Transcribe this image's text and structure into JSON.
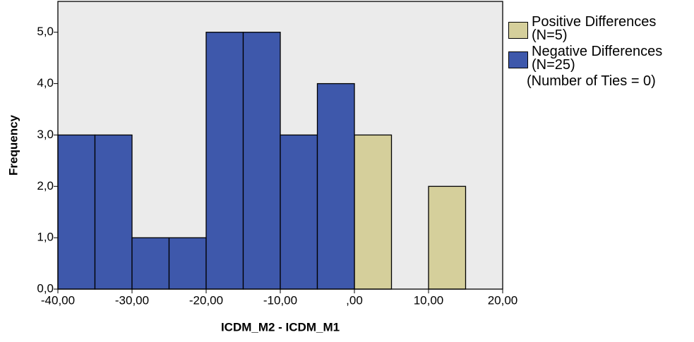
{
  "chart_data": {
    "type": "histogram",
    "x_label": "ICDM_M2 - ICDM_M1",
    "y_label": "Frequency",
    "bins": [
      -40,
      -35,
      -30,
      -25,
      -20,
      -15,
      -10,
      -5,
      0,
      5,
      10,
      15,
      20
    ],
    "series": [
      {
        "name": "Positive Differences (N=5)",
        "color": "#d5cf9b",
        "values": [
          0,
          0,
          0,
          0,
          0,
          0,
          0,
          0,
          3,
          0,
          2,
          0
        ]
      },
      {
        "name": "Negative Differences (N=25)",
        "color": "#3e58ab",
        "values": [
          3,
          3,
          1,
          1,
          5,
          5,
          3,
          4,
          0,
          0,
          0,
          0
        ]
      }
    ],
    "annotation": "(Number of Ties = 0)",
    "xlim": [
      -40,
      20
    ],
    "xticks": [
      {
        "value": -40,
        "label": "-40,00"
      },
      {
        "value": -30,
        "label": "-30,00"
      },
      {
        "value": -20,
        "label": "-20,00"
      },
      {
        "value": -10,
        "label": "-10,00"
      },
      {
        "value": 0,
        "label": ",00"
      },
      {
        "value": 10,
        "label": "10,00"
      },
      {
        "value": 20,
        "label": "20,00"
      }
    ],
    "ylim": [
      0,
      5.6
    ],
    "yticks": [
      {
        "value": 0,
        "label": "0,0"
      },
      {
        "value": 1,
        "label": "1,0"
      },
      {
        "value": 2,
        "label": "2,0"
      },
      {
        "value": 3,
        "label": "3,0"
      },
      {
        "value": 4,
        "label": "4,0"
      },
      {
        "value": 5,
        "label": "5,0"
      }
    ],
    "plot_background": "#ebebeb"
  }
}
